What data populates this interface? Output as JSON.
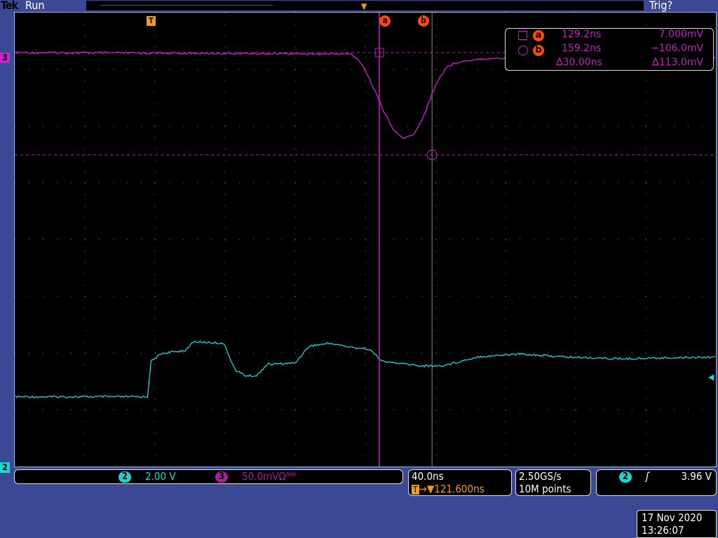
{
  "header": {
    "brand": "Tek",
    "state": "Run",
    "trigger_status": "Trig?"
  },
  "colors": {
    "ch2": "#19d6d6",
    "ch3": "#d21ed2",
    "accent": "#f59a14",
    "cursor": "#ff4a00",
    "background": "#3b4894"
  },
  "icons": {
    "trigger_marker": "T-flag-icon",
    "cursor_a": "a-circle-icon",
    "cursor_b": "b-circle-icon"
  },
  "markers": {
    "ch3": "3",
    "ch2": "2",
    "cursor_a": "a",
    "cursor_b": "b",
    "trigger": "T"
  },
  "cursor_readout": {
    "a_time": "129.2ns",
    "a_value": "7.000mV",
    "b_time": "159.2ns",
    "b_value": "−106.0mV",
    "delta_time": "Δ30.00ns",
    "delta_value": "Δ113.0mV"
  },
  "channels": {
    "ch2_label": "2",
    "ch2_scale": "2.00 V",
    "ch3_label": "3",
    "ch3_scale": "50.0mVΩᴮᵂ"
  },
  "horizontal": {
    "scale": "40.0ns",
    "position": "→▼121.600ns",
    "sample_rate": "2.50GS/s",
    "record_length": "10M points"
  },
  "trigger": {
    "source": "2",
    "slope": "rising",
    "level": "3.96 V"
  },
  "datetime": {
    "date": "17 Nov 2020",
    "time": "13:26:07"
  },
  "chart_data": {
    "type": "line",
    "xlim_ns": [
      -78,
      321.2
    ],
    "grid": true,
    "divisions": {
      "horizontal": 10,
      "vertical": 8
    },
    "trigger_time_ns": 121.6,
    "cursors_ns": [
      129.2,
      159.2
    ],
    "cursor_levels_mV": [
      7.0,
      -106.0
    ],
    "series": [
      {
        "name": "3",
        "unit": "mV",
        "scale_per_div": 50,
        "points": [
          [
            -78,
            7
          ],
          [
            113.2,
            5.5
          ],
          [
            119.2,
            -5.4
          ],
          [
            125.2,
            -28.6
          ],
          [
            131.2,
            -55.7
          ],
          [
            137.2,
            -78.9
          ],
          [
            143.2,
            -88.2
          ],
          [
            149.2,
            -82.8
          ],
          [
            155.2,
            -59.6
          ],
          [
            161.2,
            -28.6
          ],
          [
            167.2,
            -9.3
          ],
          [
            173.2,
            -3.8
          ],
          [
            185.2,
            0
          ],
          [
            201.2,
            0.8
          ],
          [
            321.2,
            1
          ]
        ]
      },
      {
        "name": "2",
        "unit": "V",
        "scale_per_div": 2,
        "points": [
          [
            -78,
            2.46
          ],
          [
            -2.8,
            2.46
          ],
          [
            -0.8,
            3.7
          ],
          [
            5.2,
            3.99
          ],
          [
            19.2,
            4.1
          ],
          [
            23.2,
            4.4
          ],
          [
            40.4,
            4.35
          ],
          [
            47.2,
            3.4
          ],
          [
            53.2,
            3.2
          ],
          [
            59.2,
            3.2
          ],
          [
            65.2,
            3.6
          ],
          [
            81.2,
            3.65
          ],
          [
            89.2,
            4.25
          ],
          [
            101.2,
            4.35
          ],
          [
            113.2,
            4.2
          ],
          [
            123.2,
            4.15
          ],
          [
            131.2,
            3.7
          ],
          [
            153.2,
            3.55
          ],
          [
            165.2,
            3.55
          ],
          [
            185.2,
            3.87
          ],
          [
            209.2,
            3.97
          ],
          [
            233.2,
            3.87
          ],
          [
            265.2,
            3.8
          ],
          [
            321.2,
            3.87
          ]
        ]
      }
    ]
  }
}
